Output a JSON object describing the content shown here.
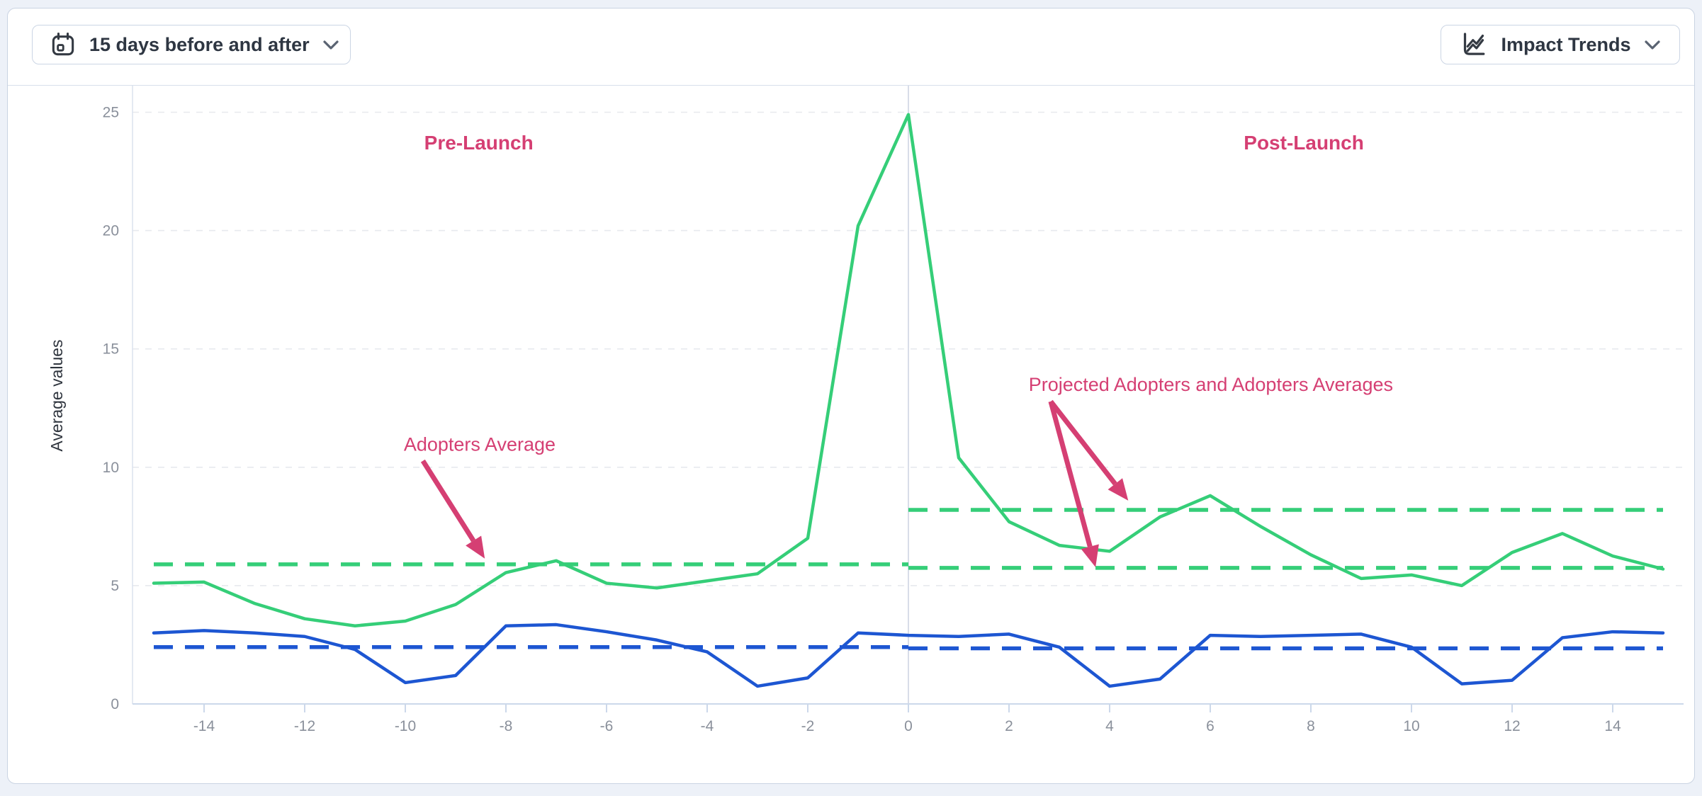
{
  "toolbar": {
    "date_range": {
      "label": "15 days before and after",
      "icon": "calendar-icon",
      "chevron": "chevron-down-icon"
    },
    "trend_selector": {
      "label": "Impact Trends",
      "icon": "line-chart-icon",
      "chevron": "chevron-down-icon"
    }
  },
  "colors": {
    "adopters_green": "#35ce78",
    "blue_series": "#1d56d2",
    "annotation_pink": "#d53f73",
    "axis_line": "#ccd8ea",
    "gridline": "#e7e9ee",
    "launch_line": "#d8dde8",
    "tick_text": "#8a909b",
    "axis_title_text": "#2f353e"
  },
  "chart_data": {
    "type": "line",
    "ylabel": "Average values",
    "ylim": [
      0,
      25
    ],
    "xlim": [
      -15,
      15
    ],
    "y_ticks": [
      0,
      5,
      10,
      15,
      20,
      25
    ],
    "x_ticks": [
      -14,
      -12,
      -10,
      -8,
      -6,
      -4,
      -2,
      0,
      2,
      4,
      6,
      8,
      10,
      12,
      14
    ],
    "grid": "horizontal-dashed",
    "legend": "none",
    "launch_line_x": 0,
    "x": [
      -15,
      -14,
      -13,
      -12,
      -11,
      -10,
      -9,
      -8,
      -7,
      -6,
      -5,
      -4,
      -3,
      -2,
      -1,
      0,
      1,
      2,
      3,
      4,
      5,
      6,
      7,
      8,
      9,
      10,
      11,
      12,
      13,
      14,
      15
    ],
    "series": [
      {
        "id": "adopters-line",
        "name": "Adopters",
        "style": "solid",
        "color": "#35ce78",
        "values": [
          5.1,
          5.15,
          4.25,
          3.6,
          3.3,
          3.5,
          4.2,
          5.55,
          6.05,
          5.1,
          4.9,
          5.2,
          5.5,
          7.0,
          20.2,
          24.9,
          10.4,
          7.7,
          6.7,
          6.45,
          7.9,
          8.8,
          7.5,
          6.3,
          5.3,
          5.45,
          5.0,
          6.4,
          7.2,
          6.25,
          5.7
        ]
      },
      {
        "id": "blue-line",
        "name": "",
        "style": "solid",
        "color": "#1d56d2",
        "values": [
          3.0,
          3.1,
          3.0,
          2.85,
          2.3,
          0.9,
          1.2,
          3.3,
          3.35,
          3.05,
          2.7,
          2.2,
          0.75,
          1.1,
          3.0,
          2.9,
          2.85,
          2.95,
          2.4,
          0.75,
          1.05,
          2.9,
          2.85,
          2.9,
          2.95,
          2.4,
          0.85,
          1.0,
          2.8,
          3.05,
          3.0
        ]
      }
    ],
    "reference_lines": [
      {
        "id": "adopters-average-pre",
        "value": 5.9,
        "x_span": [
          -15,
          0
        ],
        "color": "#35ce78",
        "style": "dashed"
      },
      {
        "id": "adopters-average-post",
        "value": 5.75,
        "x_span": [
          0,
          15
        ],
        "color": "#35ce78",
        "style": "dashed"
      },
      {
        "id": "projected-adopters-average",
        "value": 8.2,
        "x_span": [
          0,
          15
        ],
        "color": "#35ce78",
        "style": "dashed"
      },
      {
        "id": "blue-average-pre",
        "value": 2.4,
        "x_span": [
          -15,
          0
        ],
        "color": "#1d56d2",
        "style": "dashed"
      },
      {
        "id": "blue-average-post",
        "value": 2.35,
        "x_span": [
          0,
          15
        ],
        "color": "#1d56d2",
        "style": "dashed"
      }
    ],
    "annotations": [
      {
        "text": "Pre-Launch",
        "x": -8.54,
        "y": 23.7,
        "bold": true,
        "align": "middle",
        "arrows": []
      },
      {
        "text": "Post-Launch",
        "x": 7.86,
        "y": 23.7,
        "bold": true,
        "align": "middle",
        "arrows": []
      },
      {
        "text": "Adopters Average",
        "x": -10.03,
        "y": 10.96,
        "bold": false,
        "align": "start",
        "arrows": [
          {
            "from": [
              -9.65,
              10.27
            ],
            "to": [
              -8.42,
              6.14
            ]
          }
        ]
      },
      {
        "text": "Projected Adopters and Adopters Averages",
        "x": 2.39,
        "y": 13.5,
        "bold": false,
        "align": "start",
        "arrows": [
          {
            "from": [
              2.83,
              12.78
            ],
            "to": [
              4.37,
              8.59
            ]
          },
          {
            "from": [
              2.83,
              12.78
            ],
            "to": [
              3.72,
              5.78
            ]
          }
        ]
      }
    ],
    "annotation_color": "#d53f73"
  }
}
